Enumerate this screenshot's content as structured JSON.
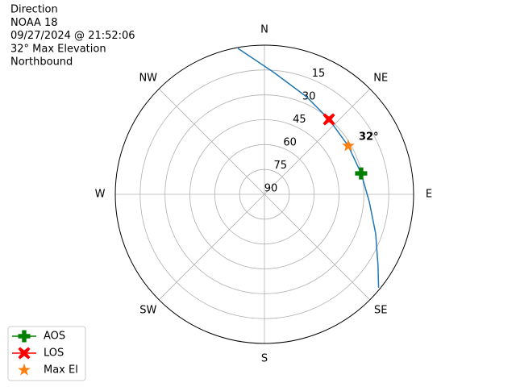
{
  "chart_data": {
    "type": "polar",
    "title": [
      "Direction",
      "NOAA 18",
      "09/27/2024 @ 21:52:06",
      "32° Max Elevation",
      "Northbound"
    ],
    "rlim": [
      90,
      0
    ],
    "rticks": [
      15,
      30,
      45,
      60,
      75,
      90
    ],
    "thetaticks": [
      {
        "value": 0,
        "label": "N"
      },
      {
        "value": 45,
        "label": "NE"
      },
      {
        "value": 90,
        "label": "E"
      },
      {
        "value": 135,
        "label": "SE"
      },
      {
        "value": 180,
        "label": "S"
      },
      {
        "value": 225,
        "label": "SW"
      },
      {
        "value": 270,
        "label": "W"
      },
      {
        "value": 315,
        "label": "NW"
      }
    ],
    "theta_direction": "clockwise",
    "theta_zero": "N",
    "grid": true,
    "track": {
      "color": "#1f77b4",
      "theta": [
        349.7,
        4.5,
        23.3,
        40.7,
        60,
        77.8,
        94,
        109.5,
        122.3,
        129.3
      ],
      "r": [
        0.5,
        16.3,
        25.9,
        30.3,
        31.6,
        30.3,
        26.6,
        18.8,
        8.9,
        1
      ]
    },
    "series": [
      {
        "name": "AOS",
        "color": "#008000",
        "marker": "plus",
        "line": true,
        "theta": [
          77.8
        ],
        "r": [
          30.3
        ]
      },
      {
        "name": "LOS",
        "color": "#ff0000",
        "marker": "x",
        "line": true,
        "theta": [
          40.7
        ],
        "r": [
          30.3
        ]
      },
      {
        "name": "Max El",
        "color": "#ff7f0e",
        "marker": "star",
        "line": false,
        "theta": [
          60
        ],
        "r": [
          31.6
        ]
      }
    ],
    "annotations": [
      {
        "text": "32°",
        "theta": 60,
        "r": 31.6
      }
    ],
    "legend": "lower left"
  }
}
